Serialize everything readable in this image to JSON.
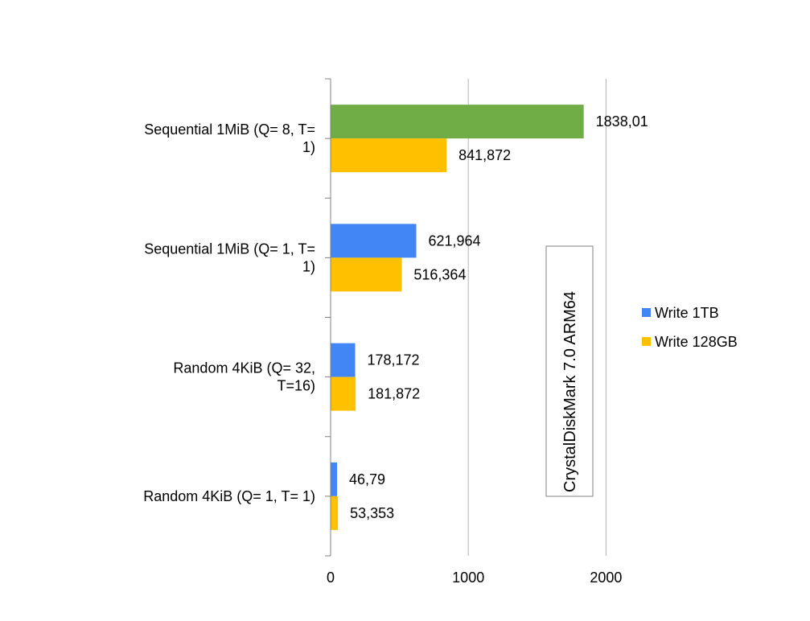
{
  "chart_data": {
    "type": "bar",
    "orientation": "horizontal",
    "title": "",
    "xlabel": "",
    "ylabel": "",
    "xlim": [
      0,
      2300
    ],
    "x_ticks": [
      0,
      1000,
      2000
    ],
    "x_tick_labels": [
      "0",
      "1000",
      "2000"
    ],
    "grid": true,
    "categories": [
      [
        "Sequential 1MiB (Q=  8, T=",
        "1)"
      ],
      [
        "Sequential 1MiB (Q=  1, T=",
        "1)"
      ],
      [
        "Random 4KiB (Q= 32,",
        "T=16)"
      ],
      [
        "Random 4KiB (Q=  1, T= 1)"
      ]
    ],
    "series": [
      {
        "name": "Write 1TB",
        "color": "#4285f4",
        "values": [
          1838.01,
          621.964,
          178.172,
          46.79
        ],
        "labels": [
          "1838,01",
          "621,964",
          "178,172",
          "46,79"
        ],
        "point_colors": [
          "#70ad47",
          null,
          null,
          null
        ]
      },
      {
        "name": "Write 128GB",
        "color": "#ffc000",
        "values": [
          841.872,
          516.364,
          181.872,
          53.353
        ],
        "labels": [
          "841,872",
          "516,364",
          "181,872",
          "53,353"
        ],
        "point_colors": [
          null,
          null,
          null,
          null
        ]
      }
    ],
    "legend_position": "right",
    "annotation": {
      "text": "CrystalDiskMark 7.0 ARM64",
      "color": "#ff0000"
    }
  }
}
